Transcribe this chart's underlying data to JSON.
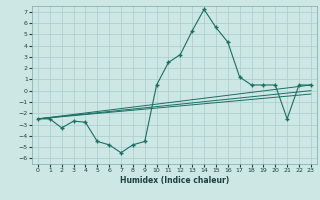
{
  "xlabel": "Humidex (Indice chaleur)",
  "bg_color": "#cde8e4",
  "grid_color": "#a8cccc",
  "line_color": "#1a6e64",
  "xlim": [
    -0.5,
    23.5
  ],
  "ylim": [
    -6.5,
    7.5
  ],
  "xticks": [
    0,
    1,
    2,
    3,
    4,
    5,
    6,
    7,
    8,
    9,
    10,
    11,
    12,
    13,
    14,
    15,
    16,
    17,
    18,
    19,
    20,
    21,
    22,
    23
  ],
  "yticks": [
    -6,
    -5,
    -4,
    -3,
    -2,
    -1,
    0,
    1,
    2,
    3,
    4,
    5,
    6,
    7
  ],
  "main_x": [
    0,
    1,
    2,
    3,
    4,
    5,
    6,
    7,
    8,
    9,
    10,
    11,
    12,
    13,
    14,
    15,
    16,
    17,
    18,
    19,
    20,
    21,
    22,
    23
  ],
  "main_y": [
    -2.5,
    -2.5,
    -3.3,
    -2.7,
    -2.8,
    -4.5,
    -4.8,
    -5.5,
    -4.8,
    -4.5,
    0.5,
    2.5,
    3.2,
    5.3,
    7.2,
    5.6,
    4.3,
    1.2,
    0.5,
    0.5,
    0.5,
    -2.5,
    0.5,
    0.5
  ],
  "trend1_x": [
    0,
    23
  ],
  "trend1_y": [
    -2.5,
    0.5
  ],
  "trend2_x": [
    0,
    23
  ],
  "trend2_y": [
    -2.5,
    0.0
  ],
  "trend3_x": [
    0,
    23
  ],
  "trend3_y": [
    -2.5,
    -0.3
  ]
}
